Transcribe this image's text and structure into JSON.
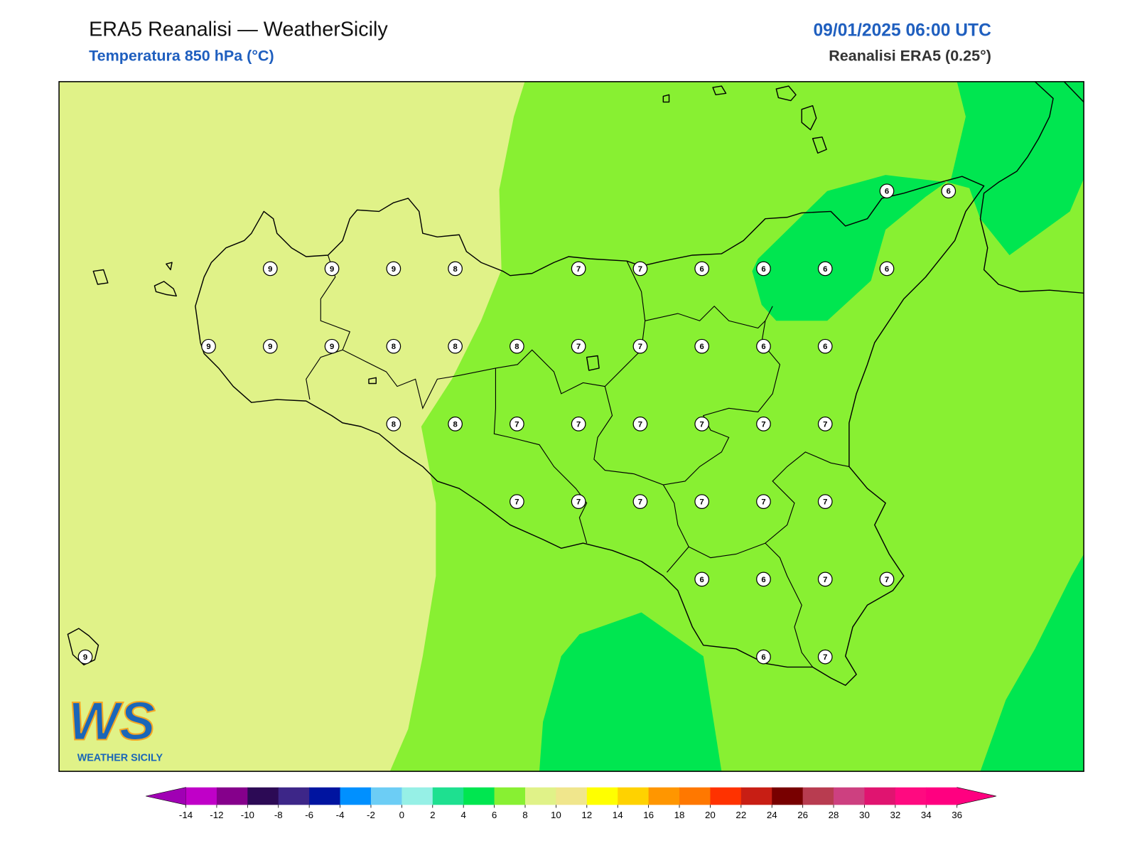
{
  "header": {
    "title": "ERA5 Reanalisi — WeatherSicily",
    "subtitle": "Temperatura 850 hPa (°C)",
    "datetime": "09/01/2025 06:00 UTC",
    "source": "Reanalisi ERA5 (0.25°)"
  },
  "logo": {
    "mark": "WS",
    "name": "WEATHER SICILY"
  },
  "stations": {
    "rows": [
      [
        null,
        null,
        null,
        null,
        null,
        null,
        null,
        null,
        null,
        null,
        null,
        null,
        null,
        6,
        6
      ],
      [
        null,
        null,
        null,
        9,
        9,
        9,
        8,
        null,
        7,
        7,
        6,
        6,
        6,
        6,
        null
      ],
      [
        null,
        null,
        9,
        9,
        9,
        8,
        8,
        8,
        7,
        7,
        6,
        6,
        6,
        null,
        null
      ],
      [
        null,
        null,
        null,
        null,
        null,
        8,
        8,
        7,
        7,
        7,
        7,
        7,
        7,
        null,
        null
      ],
      [
        null,
        null,
        null,
        null,
        null,
        null,
        null,
        7,
        7,
        7,
        7,
        7,
        7,
        null,
        null
      ],
      [
        null,
        null,
        null,
        null,
        null,
        null,
        null,
        null,
        null,
        null,
        6,
        6,
        7,
        7,
        null
      ],
      [
        9,
        null,
        null,
        null,
        null,
        null,
        null,
        null,
        null,
        null,
        null,
        6,
        7,
        null,
        null
      ]
    ]
  },
  "colorbar": {
    "ticks": [
      -14,
      -12,
      -10,
      -8,
      -6,
      -4,
      -2,
      0,
      2,
      4,
      6,
      8,
      10,
      12,
      14,
      16,
      18,
      20,
      22,
      24,
      26,
      28,
      30,
      32,
      34,
      36
    ],
    "colors": [
      "#c000c8",
      "#85008b",
      "#2c0a55",
      "#3d2688",
      "#0014a0",
      "#0090ff",
      "#6ccdf5",
      "#96f0e6",
      "#1ee090",
      "#00e650",
      "#88f032",
      "#e0f288",
      "#f0e68c",
      "#ffff00",
      "#ffd200",
      "#ff9600",
      "#ff7800",
      "#ff3200",
      "#c81e14",
      "#780000",
      "#b83c50",
      "#cd4080",
      "#e01470",
      "#ff0a80",
      "#ff0080"
    ],
    "under_color": "#a000b4",
    "over_color": "#ff0080"
  }
}
